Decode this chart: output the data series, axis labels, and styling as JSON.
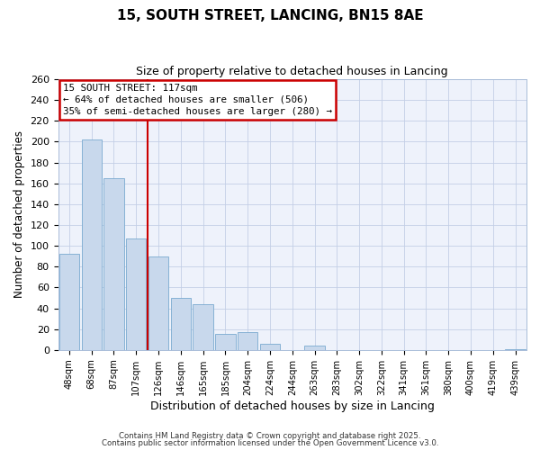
{
  "title": "15, SOUTH STREET, LANCING, BN15 8AE",
  "subtitle": "Size of property relative to detached houses in Lancing",
  "xlabel": "Distribution of detached houses by size in Lancing",
  "ylabel": "Number of detached properties",
  "bar_labels": [
    "48sqm",
    "68sqm",
    "87sqm",
    "107sqm",
    "126sqm",
    "146sqm",
    "165sqm",
    "185sqm",
    "204sqm",
    "224sqm",
    "244sqm",
    "263sqm",
    "283sqm",
    "302sqm",
    "322sqm",
    "341sqm",
    "361sqm",
    "380sqm",
    "400sqm",
    "419sqm",
    "439sqm"
  ],
  "bar_values": [
    92,
    202,
    165,
    107,
    90,
    50,
    44,
    15,
    17,
    6,
    0,
    4,
    0,
    0,
    0,
    0,
    0,
    0,
    0,
    0,
    1
  ],
  "bar_color": "#c8d8ec",
  "bar_edge_color": "#7aaad0",
  "vline_x": 4.0,
  "vline_color": "#cc0000",
  "ylim": [
    0,
    260
  ],
  "yticks": [
    0,
    20,
    40,
    60,
    80,
    100,
    120,
    140,
    160,
    180,
    200,
    220,
    240,
    260
  ],
  "annotation_title": "15 SOUTH STREET: 117sqm",
  "annotation_line1": "← 64% of detached houses are smaller (506)",
  "annotation_line2": "35% of semi-detached houses are larger (280) →",
  "annotation_box_color": "#cc0000",
  "bg_color": "#eef2fb",
  "grid_color": "#c4cfe6",
  "footer1": "Contains HM Land Registry data © Crown copyright and database right 2025.",
  "footer2": "Contains public sector information licensed under the Open Government Licence v3.0."
}
